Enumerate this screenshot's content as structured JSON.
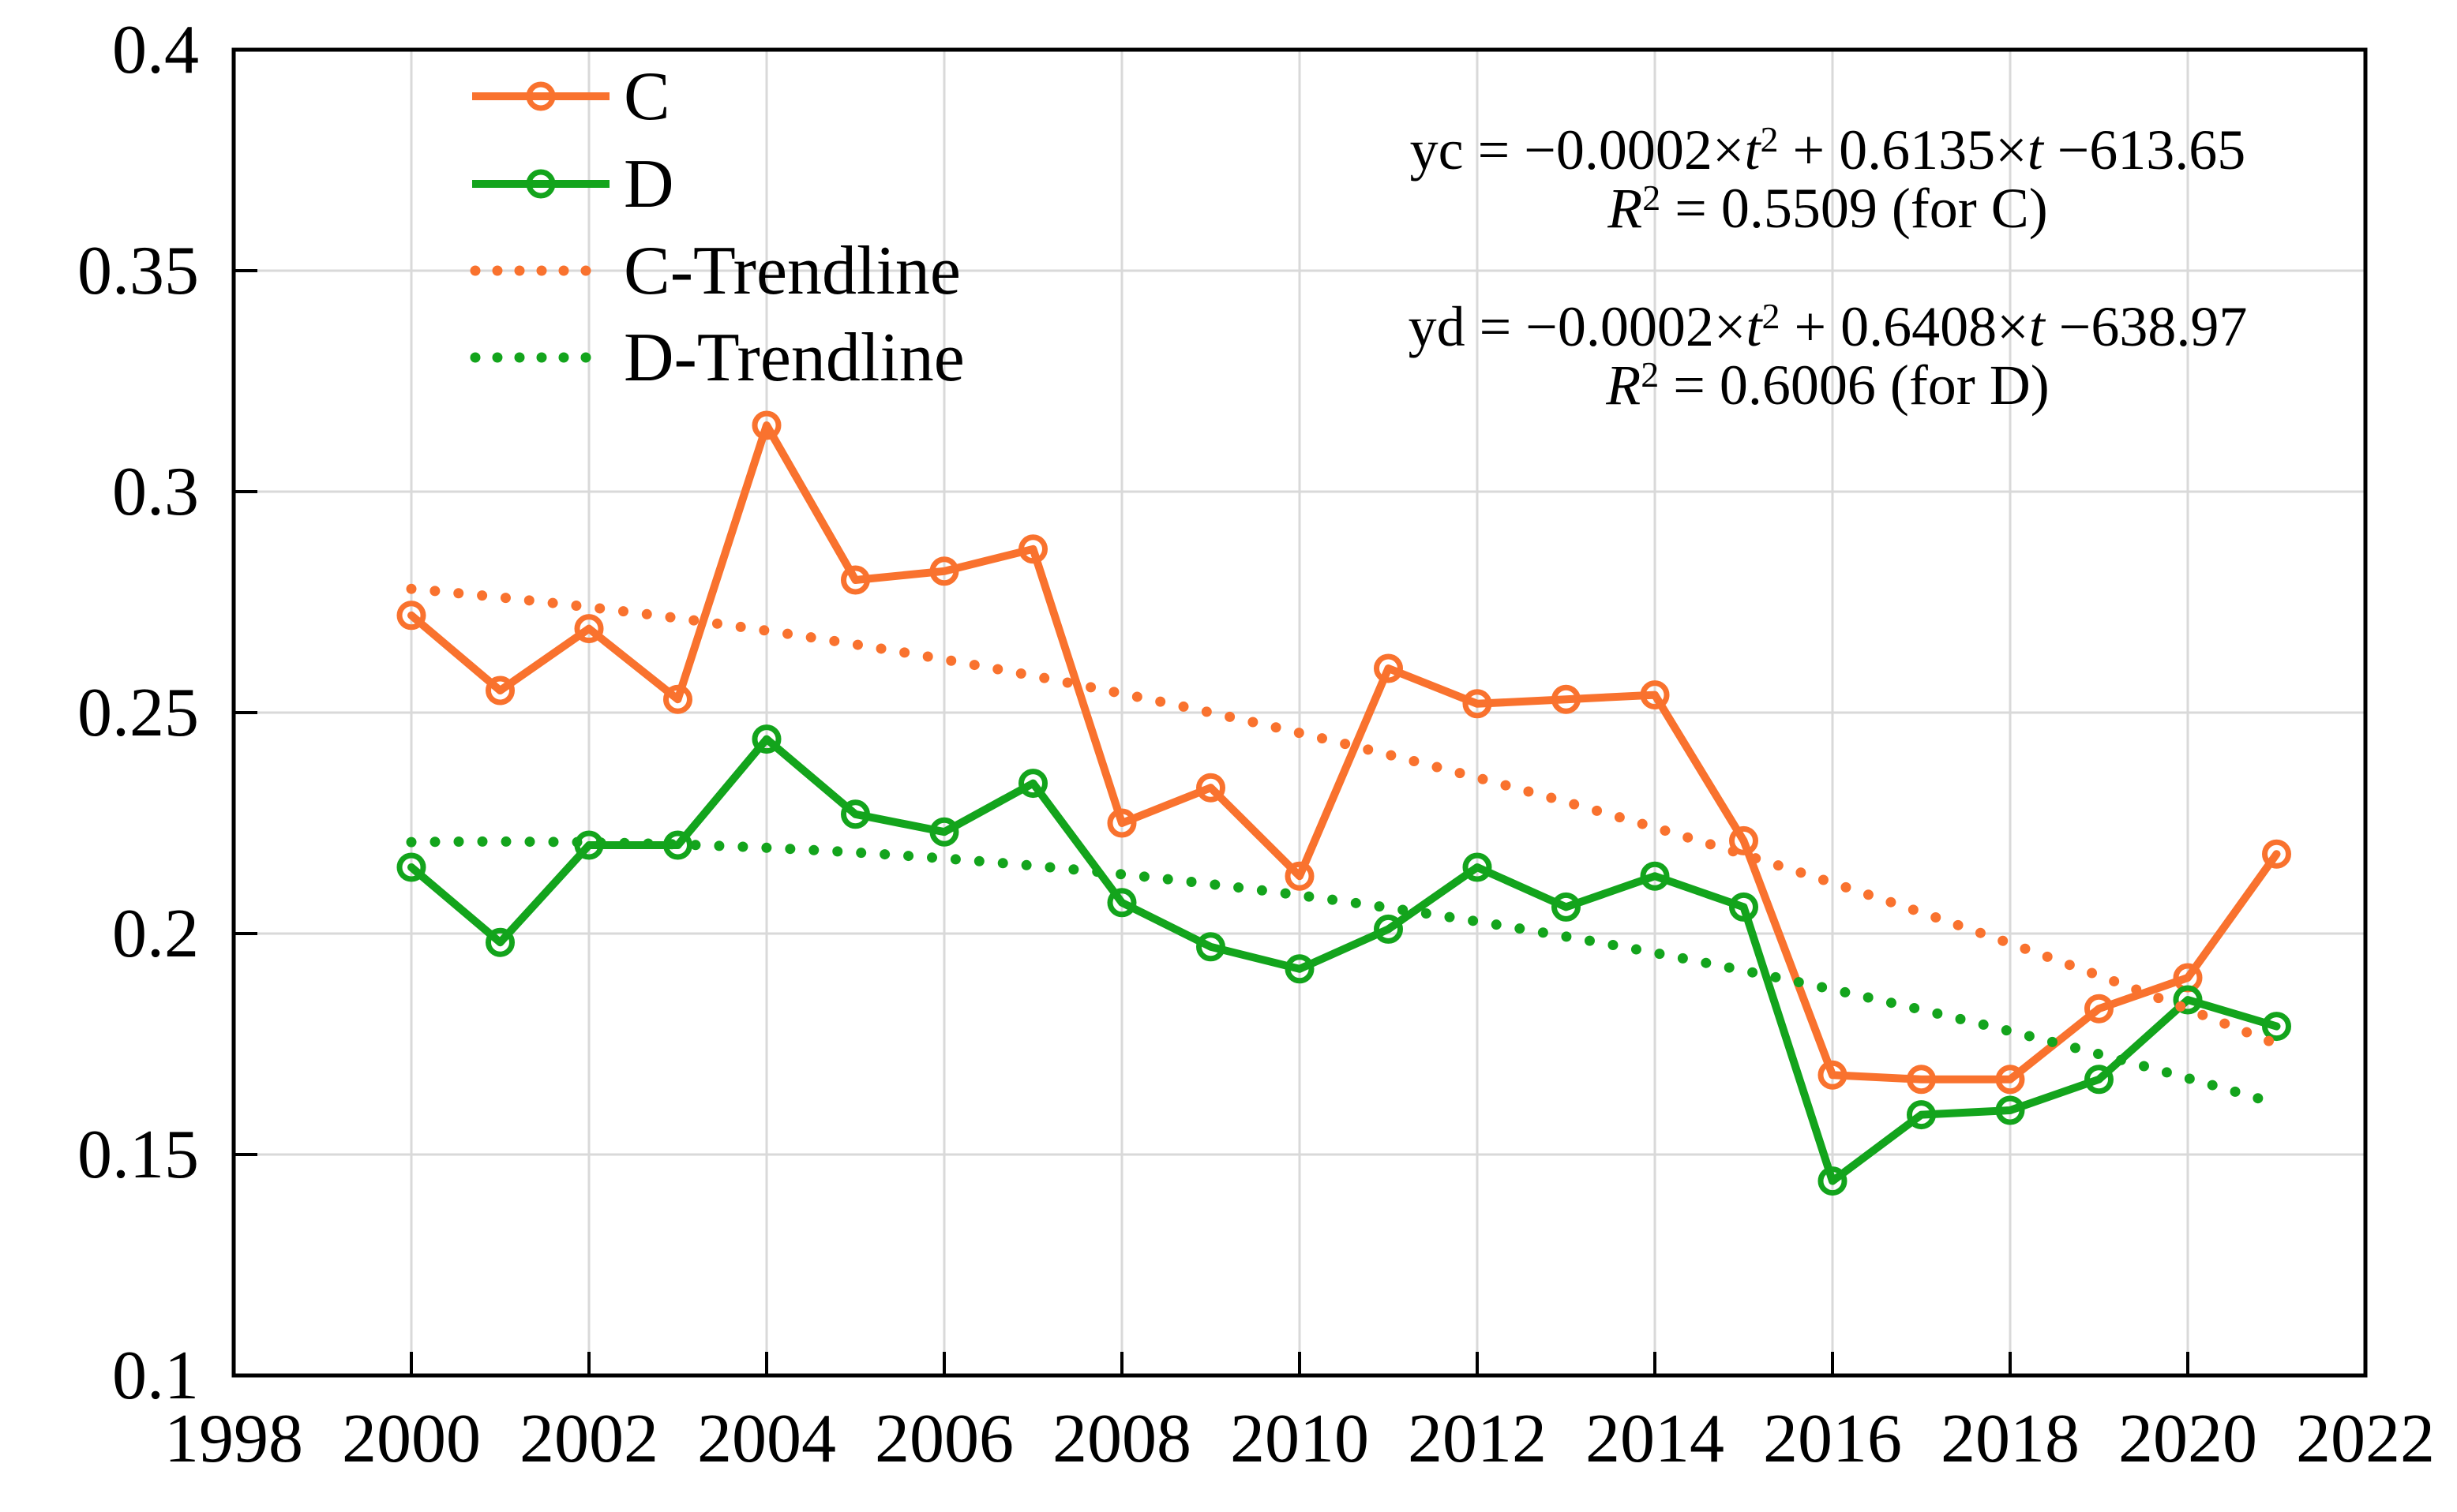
{
  "chart_data": {
    "type": "line",
    "title": "",
    "xlabel": "",
    "ylabel": "",
    "x": [
      2000,
      2001,
      2002,
      2003,
      2004,
      2005,
      2006,
      2007,
      2008,
      2009,
      2010,
      2011,
      2012,
      2013,
      2014,
      2015,
      2016,
      2017,
      2018,
      2019,
      2020,
      2021
    ],
    "series": [
      {
        "name": "C",
        "style": "solid-circle",
        "color": "#F9722E",
        "values": [
          0.272,
          0.255,
          0.269,
          0.253,
          0.315,
          0.28,
          0.282,
          0.287,
          0.225,
          0.233,
          0.213,
          0.26,
          0.252,
          0.253,
          0.254,
          0.221,
          0.168,
          0.167,
          0.167,
          0.183,
          0.19,
          0.218
        ]
      },
      {
        "name": "D",
        "style": "solid-circle",
        "color": "#13A41C",
        "values": [
          0.215,
          0.198,
          0.22,
          0.22,
          0.244,
          0.227,
          0.223,
          0.234,
          0.207,
          0.197,
          0.192,
          0.201,
          0.215,
          0.206,
          0.213,
          0.206,
          0.144,
          0.159,
          0.16,
          0.167,
          0.185,
          0.179
        ]
      },
      {
        "name": "C-Trendline",
        "style": "dotted",
        "color": "#F9722E",
        "quad": {
          "a": -0.0001495,
          "b": -0.001766,
          "c": 0.278,
          "t_start": 2000,
          "t_end": 2021
        }
      },
      {
        "name": "D-Trendline",
        "style": "dotted",
        "color": "#13A41C",
        "quad": {
          "a": -0.0001468,
          "b": 0.000264,
          "c": 0.2207,
          "t_start": 2000,
          "t_end": 2021
        }
      }
    ],
    "axes": {
      "x": {
        "min": 1998,
        "max": 2022,
        "tick_step": 2,
        "tick_labels": [
          "1998",
          "2000",
          "2002",
          "2004",
          "2006",
          "2008",
          "2010",
          "2012",
          "2014",
          "2016",
          "2018",
          "2020",
          "2022"
        ]
      },
      "y": {
        "min": 0.1,
        "max": 0.4,
        "tick_step": 0.05,
        "tick_labels": [
          "0.4",
          "0.35",
          "0.3",
          "0.25",
          "0.2",
          "0.15",
          "0.1"
        ]
      }
    },
    "grid": true,
    "legend": {
      "position": "top-left-inside",
      "entries": [
        "C",
        "D",
        "C-Trendline",
        "D-Trendline"
      ]
    },
    "annotations": [
      {
        "id": "eq_c",
        "segments": [
          {
            "t": "yc = −0.0002×"
          },
          {
            "t": "t",
            "italic": true
          },
          {
            "t": "2",
            "sup": true
          },
          {
            "t": " + 0.6135×"
          },
          {
            "t": "t",
            "italic": true
          },
          {
            "t": " −613.65"
          }
        ]
      },
      {
        "id": "r2_c",
        "segments": [
          {
            "t": "R",
            "italic": true
          },
          {
            "t": "2",
            "sup": true
          },
          {
            "t": " = 0.5509  (for C)"
          }
        ]
      },
      {
        "id": "eq_d",
        "segments": [
          {
            "t": "yd = −0.0002×"
          },
          {
            "t": "t",
            "italic": true
          },
          {
            "t": "2",
            "sup": true
          },
          {
            "t": " + 0.6408×"
          },
          {
            "t": "t",
            "italic": true
          },
          {
            "t": " −638.97"
          }
        ]
      },
      {
        "id": "r2_d",
        "segments": [
          {
            "t": "R",
            "italic": true
          },
          {
            "t": "2",
            "sup": true
          },
          {
            "t": " = 0.6006  (for D)"
          }
        ]
      }
    ],
    "colors": {
      "series_c": "#F9722E",
      "series_d": "#13A41C",
      "gridline": "#D9D9D9",
      "axis": "#000000",
      "text": "#000000",
      "background": "#FFFFFF"
    }
  }
}
